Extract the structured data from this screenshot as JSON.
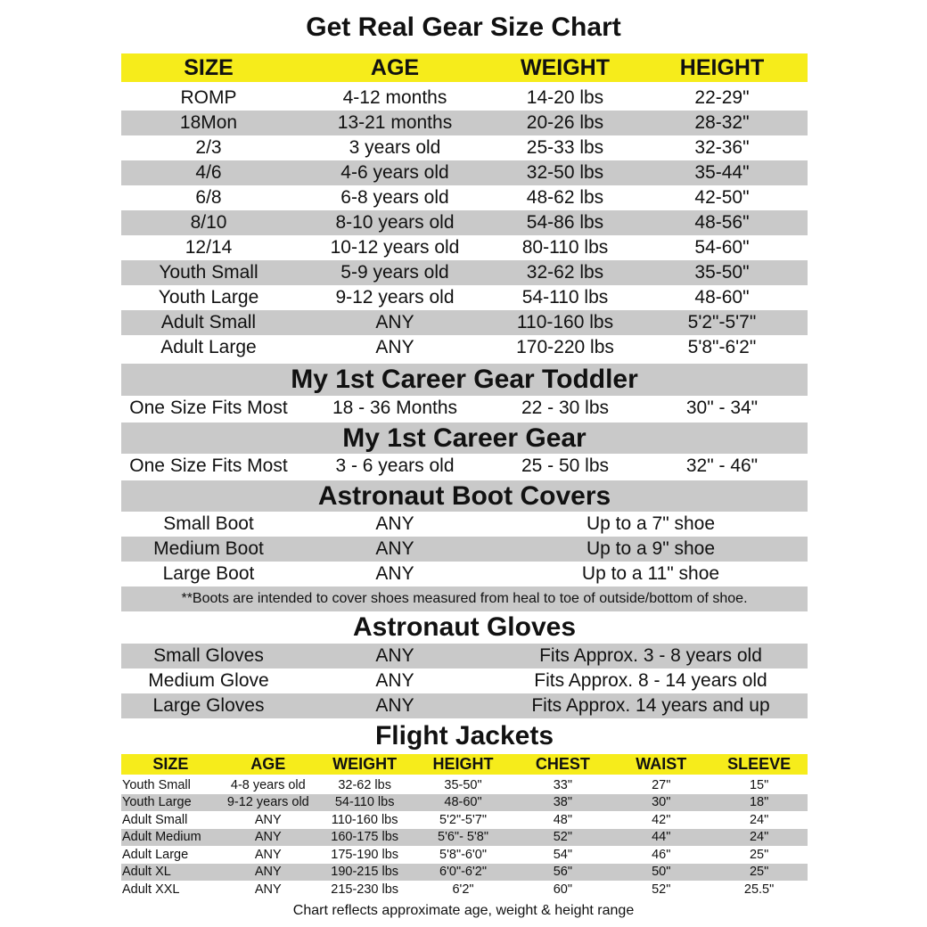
{
  "title": "Get Real Gear Size Chart",
  "colors": {
    "header_yellow": "#f6ec1b",
    "stripe_gray": "#c9c9c9"
  },
  "main": {
    "headers": [
      "SIZE",
      "AGE",
      "WEIGHT",
      "HEIGHT"
    ],
    "rows": [
      [
        "ROMP",
        "4-12 months",
        "14-20 lbs",
        "22-29\""
      ],
      [
        "18Mon",
        "13-21 months",
        "20-26 lbs",
        "28-32\""
      ],
      [
        "2/3",
        "3 years old",
        "25-33 lbs",
        "32-36\""
      ],
      [
        "4/6",
        "4-6 years old",
        "32-50 lbs",
        "35-44\""
      ],
      [
        "6/8",
        "6-8 years old",
        "48-62 lbs",
        "42-50\""
      ],
      [
        "8/10",
        "8-10 years old",
        "54-86 lbs",
        "48-56\""
      ],
      [
        "12/14",
        "10-12 years old",
        "80-110 lbs",
        "54-60\""
      ],
      [
        "Youth Small",
        "5-9 years old",
        "32-62 lbs",
        "35-50\""
      ],
      [
        "Youth Large",
        "9-12 years old",
        "54-110 lbs",
        "48-60\""
      ],
      [
        "Adult Small",
        "ANY",
        "110-160 lbs",
        "5'2\"-5'7\""
      ],
      [
        "Adult Large",
        "ANY",
        "170-220 lbs",
        "5'8\"-6'2\""
      ]
    ]
  },
  "toddler": {
    "heading": "My 1st Career Gear Toddler",
    "row": [
      "One Size Fits Most",
      "18 - 36 Months",
      "22 - 30 lbs",
      "30\" - 34\""
    ]
  },
  "career": {
    "heading": "My 1st Career Gear",
    "row": [
      "One Size Fits Most",
      "3 - 6 years old",
      "25 - 50 lbs",
      "32\" - 46\""
    ]
  },
  "boots": {
    "heading": "Astronaut  Boot Covers",
    "rows": [
      [
        "Small Boot",
        "ANY",
        "Up to a 7\" shoe"
      ],
      [
        "Medium Boot",
        "ANY",
        "Up to a 9\" shoe"
      ],
      [
        "Large Boot",
        "ANY",
        "Up to a 11\" shoe"
      ]
    ],
    "note": "**Boots are intended to cover shoes measured from heal to toe of outside/bottom of shoe."
  },
  "gloves": {
    "heading": "Astronaut Gloves",
    "rows": [
      [
        "Small Gloves",
        "ANY",
        "Fits Approx. 3 - 8 years old"
      ],
      [
        "Medium Glove",
        "ANY",
        "Fits Approx. 8 - 14 years old"
      ],
      [
        "Large Gloves",
        "ANY",
        "Fits Approx. 14 years and up"
      ]
    ]
  },
  "jackets": {
    "heading": "Flight Jackets",
    "headers": [
      "SIZE",
      "AGE",
      "WEIGHT",
      "HEIGHT",
      "CHEST",
      "WAIST",
      "SLEEVE"
    ],
    "rows": [
      [
        "Youth Small",
        "4-8 years old",
        "32-62 lbs",
        "35-50\"",
        "33\"",
        "27\"",
        "15\""
      ],
      [
        "Youth Large",
        "9-12 years old",
        "54-110 lbs",
        "48-60\"",
        "38\"",
        "30\"",
        "18\""
      ],
      [
        "Adult Small",
        "ANY",
        "110-160 lbs",
        "5'2\"-5'7\"",
        "48\"",
        "42\"",
        "24\""
      ],
      [
        "Adult Medium",
        "ANY",
        "160-175 lbs",
        "5'6\"- 5'8\"",
        "52\"",
        "44\"",
        "24\""
      ],
      [
        "Adult Large",
        "ANY",
        "175-190 lbs",
        "5'8\"-6'0\"",
        "54\"",
        "46\"",
        "25\""
      ],
      [
        "Adult XL",
        "ANY",
        "190-215 lbs",
        "6'0\"-6'2\"",
        "56\"",
        "50\"",
        "25\""
      ],
      [
        "Adult XXL",
        "ANY",
        "215-230 lbs",
        "6'2\"",
        "60\"",
        "52\"",
        "25.5\""
      ]
    ]
  },
  "footer": "Chart reflects approximate age, weight & height range"
}
